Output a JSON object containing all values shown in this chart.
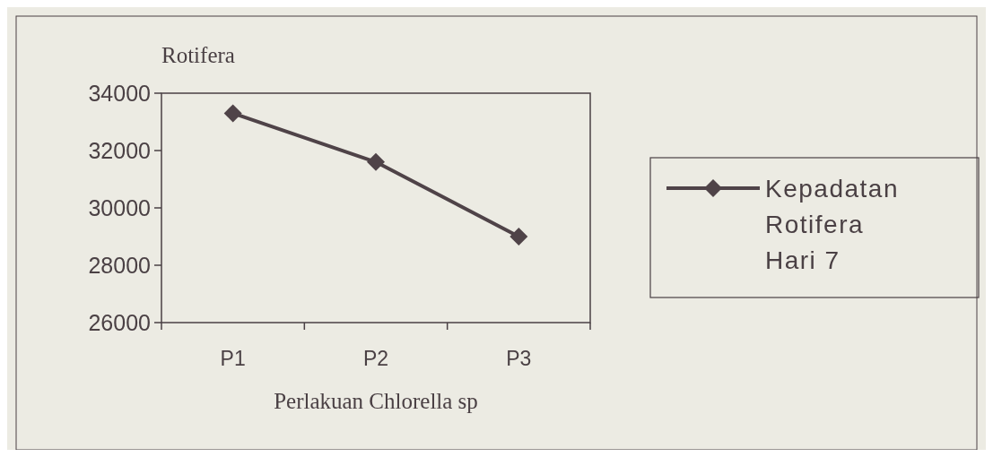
{
  "chart_data": {
    "type": "line",
    "ylabel": "Rotifera",
    "xlabel": "Perlakuan Chlorella sp",
    "categories": [
      "P1",
      "P2",
      "P3"
    ],
    "series": [
      {
        "name": "Kepadatan Rotifera Hari 7",
        "color": "#4f4348",
        "values": [
          33300,
          31600,
          29000
        ]
      }
    ],
    "ylim": [
      26000,
      34000
    ],
    "yticks": [
      26000,
      28000,
      30000,
      32000,
      34000
    ],
    "grid": false,
    "legend": "right",
    "marker": "diamond",
    "line_style": "solid"
  }
}
